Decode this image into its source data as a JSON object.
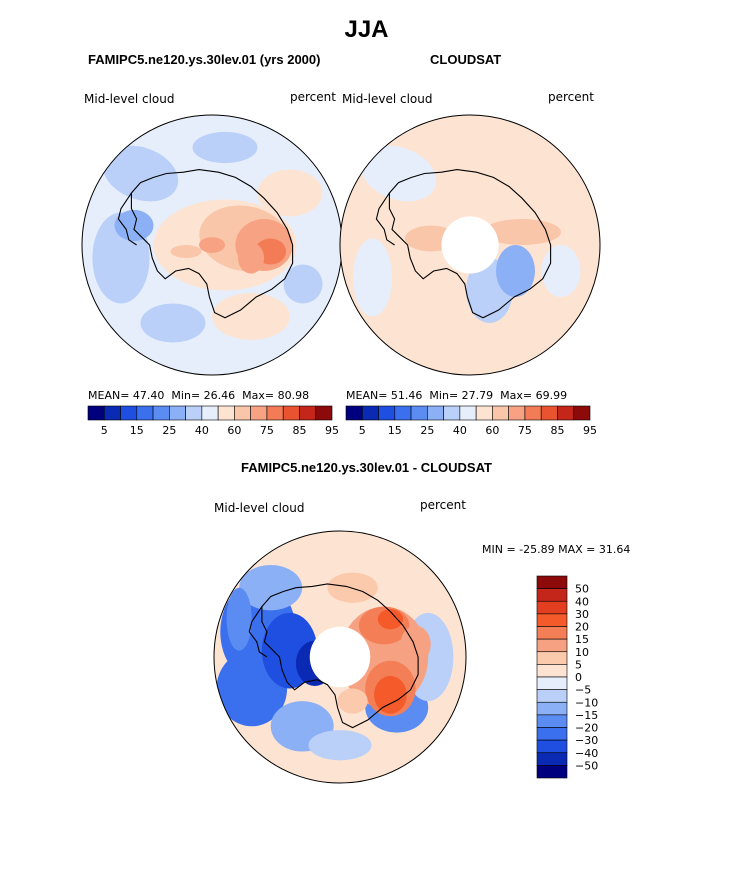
{
  "figure": {
    "main_title": "JJA",
    "panels": [
      {
        "id": "model",
        "title": "FAMIPC5.ne120.ys.30lev.01 (yrs 2000)",
        "left_label": "Mid-level cloud",
        "right_label": "percent",
        "stats": {
          "mean_label": "MEAN=",
          "mean": "47.40",
          "min_label": "Min=",
          "min": "26.46",
          "max_label": "Max=",
          "max": "80.98"
        }
      },
      {
        "id": "obs",
        "title": "CLOUDSAT",
        "left_label": "Mid-level cloud",
        "right_label": "percent",
        "stats": {
          "mean_label": "MEAN=",
          "mean": "51.46",
          "min_label": "Min=",
          "min": "27.79",
          "max_label": "Max=",
          "max": "69.99"
        }
      }
    ],
    "diff_panel": {
      "title": "FAMIPC5.ne120.ys.30lev.01 - CLOUDSAT",
      "left_label": "Mid-level cloud",
      "right_label": "percent",
      "minmax_text": "MIN = -25.89 MAX =  31.64"
    }
  },
  "chart_data": [
    {
      "type": "heatmap",
      "projection": "south-polar-stereographic",
      "title": "FAMIPC5.ne120.ys.30lev.01 (yrs 2000)",
      "variable": "Mid-level cloud",
      "units": "percent",
      "mean": 47.4,
      "min": 26.46,
      "max": 80.98,
      "colorbar_levels": [
        5,
        10,
        15,
        20,
        25,
        30,
        40,
        50,
        60,
        70,
        75,
        80,
        85,
        90,
        95
      ],
      "colorbar_tick_labels": [
        "5",
        "15",
        "25",
        "40",
        "60",
        "75",
        "85",
        "95"
      ]
    },
    {
      "type": "heatmap",
      "projection": "south-polar-stereographic",
      "title": "CLOUDSAT",
      "variable": "Mid-level cloud",
      "units": "percent",
      "mean": 51.46,
      "min": 27.79,
      "max": 69.99,
      "colorbar_levels": [
        5,
        10,
        15,
        20,
        25,
        30,
        40,
        50,
        60,
        70,
        75,
        80,
        85,
        90,
        95
      ],
      "colorbar_tick_labels": [
        "5",
        "15",
        "25",
        "40",
        "60",
        "75",
        "85",
        "95"
      ]
    },
    {
      "type": "heatmap",
      "projection": "south-polar-stereographic",
      "title": "FAMIPC5.ne120.ys.30lev.01 - CLOUDSAT",
      "variable": "Mid-level cloud",
      "units": "percent",
      "min": -25.89,
      "max": 31.64,
      "colorbar_levels": [
        50,
        40,
        30,
        20,
        15,
        10,
        5,
        0,
        -5,
        -10,
        -15,
        -20,
        -30,
        -40,
        -50
      ],
      "colorbar_tick_labels": [
        "50",
        "40",
        "30",
        "20",
        "15",
        "10",
        "5",
        "0",
        "−5",
        "−10",
        "−15",
        "−20",
        "−30",
        "−40",
        "−50"
      ]
    }
  ],
  "colors": {
    "seq_palette": [
      "#00007f",
      "#0a2ab4",
      "#1f4fe0",
      "#3a6fee",
      "#5b8cf2",
      "#8cb0f6",
      "#bad0f8",
      "#e6eefc",
      "#fde4d2",
      "#f9c6a9",
      "#f7a383",
      "#f37b56",
      "#e9532f",
      "#c4261a",
      "#8c0a0a"
    ],
    "div_palette": [
      "#8c0a0a",
      "#c4261a",
      "#e23e1f",
      "#f55a2a",
      "#f47f56",
      "#f6a282",
      "#fbc9ac",
      "#fde4d2",
      "#e6eefc",
      "#bad0f8",
      "#8cb0f6",
      "#5b8cf2",
      "#3a6fee",
      "#1f4fe0",
      "#0a2ab4",
      "#00007f"
    ],
    "coast": "#000000"
  }
}
